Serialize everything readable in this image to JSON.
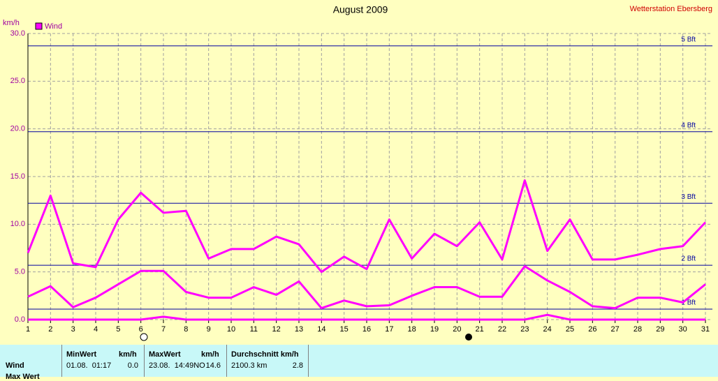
{
  "chart_data": {
    "type": "line",
    "title": "August 2009",
    "station": "Wetterstation Ebersberg",
    "y_label": "km/h",
    "x": [
      1,
      2,
      3,
      4,
      5,
      6,
      7,
      8,
      9,
      10,
      11,
      12,
      13,
      14,
      15,
      16,
      17,
      18,
      19,
      20,
      21,
      22,
      23,
      24,
      25,
      26,
      27,
      28,
      29,
      30,
      31
    ],
    "xlim": [
      1,
      31
    ],
    "ylim": [
      0,
      30
    ],
    "yticks": [
      {
        "value": 0,
        "label": "0.0"
      },
      {
        "value": 5,
        "label": "5.0"
      },
      {
        "value": 10,
        "label": "10.0"
      },
      {
        "value": 15,
        "label": "15.0"
      },
      {
        "value": 20,
        "label": "20.0"
      },
      {
        "value": 25,
        "label": "25.0"
      },
      {
        "value": 30,
        "label": "30.0"
      }
    ],
    "grid": true,
    "series": [
      {
        "name": "Wind",
        "color": "#ff00ff",
        "values": [
          7.0,
          13.0,
          5.9,
          5.5,
          10.5,
          13.3,
          11.2,
          11.4,
          6.4,
          7.4,
          7.4,
          8.7,
          7.9,
          5.0,
          6.6,
          5.3,
          10.5,
          6.4,
          9.0,
          7.7,
          10.2,
          6.3,
          14.6,
          7.2,
          10.5,
          6.3,
          6.3,
          6.8,
          7.4,
          7.7,
          10.2
        ]
      },
      {
        "color": "#ff00ff",
        "values": [
          2.4,
          3.5,
          1.3,
          2.3,
          3.7,
          5.1,
          5.1,
          2.9,
          2.3,
          2.3,
          3.4,
          2.6,
          4.0,
          1.2,
          2.0,
          1.4,
          1.5,
          2.5,
          3.4,
          3.4,
          2.4,
          2.4,
          5.6,
          4.1,
          2.9,
          1.4,
          1.2,
          2.3,
          2.3,
          1.8,
          3.7
        ]
      },
      {
        "color": "#ff00ff",
        "values": [
          0,
          0,
          0,
          0,
          0,
          0,
          0.3,
          0,
          0,
          0,
          0,
          0,
          0,
          0,
          0,
          0,
          0,
          0,
          0,
          0,
          0,
          0,
          0,
          0.5,
          0,
          0,
          0,
          0,
          0,
          0,
          0
        ]
      }
    ],
    "bft_lines": [
      {
        "value": 1.1,
        "label": "1 Bft"
      },
      {
        "value": 5.7,
        "label": "2 Bft"
      },
      {
        "value": 12.2,
        "label": "3 Bft"
      },
      {
        "value": 19.7,
        "label": "4 Bft"
      },
      {
        "value": 28.7,
        "label": "5 Bft"
      }
    ],
    "bft_color": "#0000a0"
  },
  "table": {
    "headers": [
      "MinWert",
      "km/h",
      "MaxWert",
      "km/h",
      "Durchschnitt km/h"
    ],
    "rows": [
      [
        "Wind",
        "01.08.  01:17",
        "0.0",
        "23.08.  14:49NO",
        "14.6",
        "2100.3 km",
        "2.8"
      ],
      [
        "Max Wert"
      ]
    ]
  }
}
